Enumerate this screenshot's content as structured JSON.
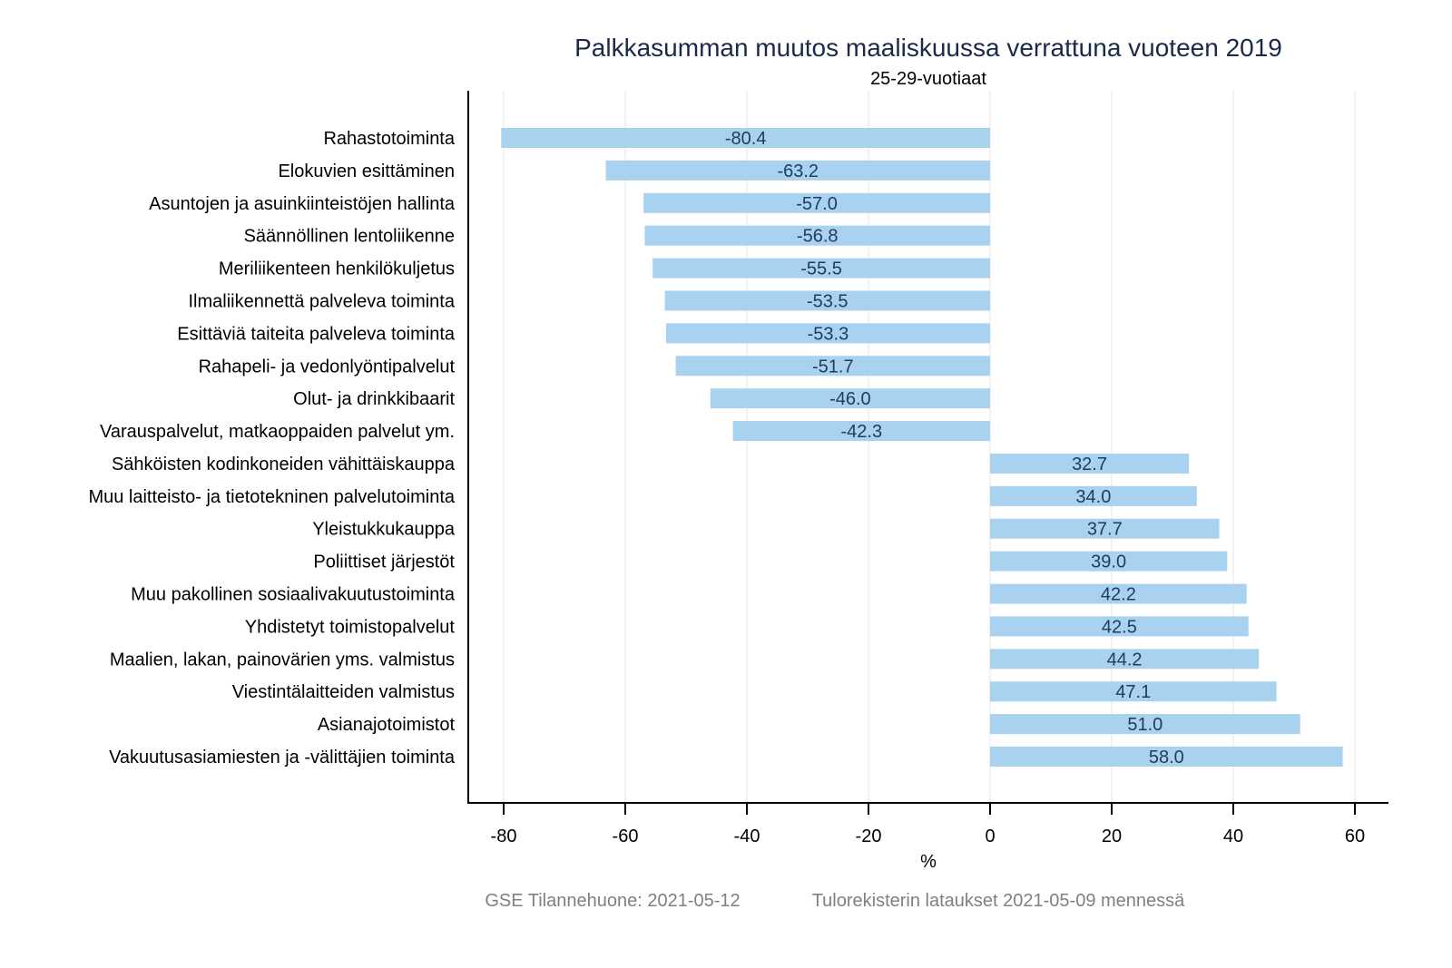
{
  "chart_data": {
    "type": "bar",
    "orientation": "horizontal",
    "title": "Palkkasumman muutos maaliskuussa verrattuna vuoteen 2019",
    "subtitle": "25-29-vuotiaat",
    "xlabel": "%",
    "ylabel": "",
    "xlim": [
      -86,
      65.5
    ],
    "xticks": [
      -80,
      -60,
      -40,
      -20,
      0,
      20,
      40,
      60
    ],
    "grid": true,
    "bar_color": "#a8d2f0",
    "categories": [
      "Rahastotoiminta",
      "Elokuvien esittäminen",
      "Asuntojen ja asuinkiinteistöjen hallinta",
      "Säännöllinen lentoliikenne",
      "Meriliikenteen henkilökuljetus",
      "Ilmaliikennettä palveleva toiminta",
      "Esittäviä taiteita palveleva toiminta",
      "Rahapeli- ja vedonlyöntipalvelut",
      "Olut- ja drinkkibaarit",
      "Varauspalvelut, matkaoppaiden palvelut ym.",
      "Sähköisten kodinkoneiden vähittäiskauppa",
      "Muu laitteisto- ja tietotekninen palvelutoiminta",
      "Yleistukkukauppa",
      "Poliittiset järjestöt",
      "Muu pakollinen sosiaalivakuutustoiminta",
      "Yhdistetyt toimistopalvelut",
      "Maalien, lakan, painovärien yms. valmistus",
      "Viestintälaitteiden valmistus",
      "Asianajotoimistot",
      "Vakuutusasiamiesten ja -välittäjien toiminta"
    ],
    "values": [
      -80.4,
      -63.2,
      -57.0,
      -56.8,
      -55.5,
      -53.5,
      -53.3,
      -51.7,
      -46.0,
      -42.3,
      32.7,
      34.0,
      37.7,
      39.0,
      42.2,
      42.5,
      44.2,
      47.1,
      51.0,
      58.0
    ],
    "value_labels": [
      "-80.4",
      "-63.2",
      "-57.0",
      "-56.8",
      "-55.5",
      "-53.5",
      "-53.3",
      "-51.7",
      "-46.0",
      "-42.3",
      "32.7",
      "34.0",
      "37.7",
      "39.0",
      "42.2",
      "42.5",
      "44.2",
      "47.1",
      "51.0",
      "58.0"
    ],
    "tick_labels": [
      "-80",
      "-60",
      "-40",
      "-20",
      "0",
      "20",
      "40",
      "60"
    ]
  },
  "footer": {
    "left": "GSE Tilannehuone: 2021-05-12",
    "right": "Tulorekisterin lataukset 2021-05-09 mennessä"
  }
}
